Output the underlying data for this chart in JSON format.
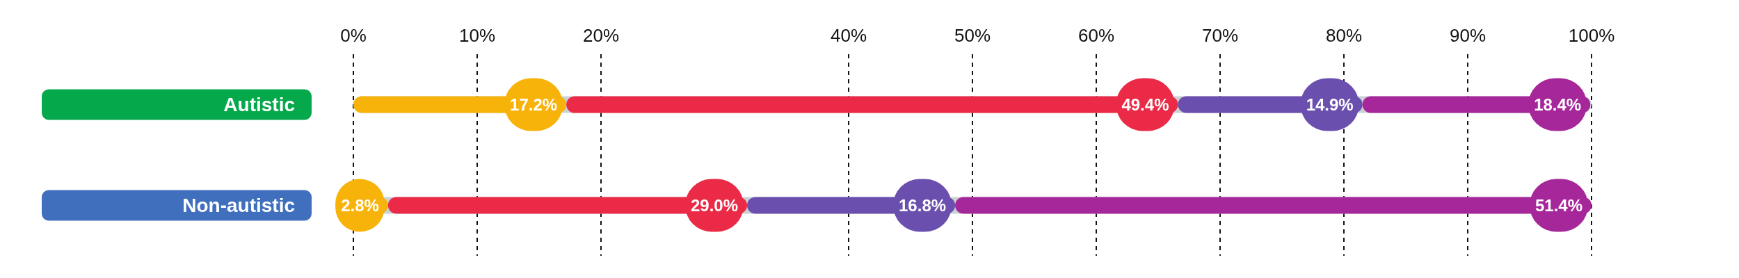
{
  "chart_data": {
    "type": "bar",
    "orientation": "horizontal",
    "stacked": true,
    "categories": [
      "Autistic",
      "Non-autistic"
    ],
    "series": [
      {
        "color": "#f7b30a",
        "values": [
          17.2,
          2.8
        ],
        "value_labels": [
          "17.2%",
          "2.8%"
        ]
      },
      {
        "color": "#ea2a46",
        "values": [
          49.4,
          29.0
        ],
        "value_labels": [
          "49.4%",
          "29.0%"
        ]
      },
      {
        "color": "#6a4fae",
        "values": [
          14.9,
          16.8
        ],
        "value_labels": [
          "14.9%",
          "16.8%"
        ]
      },
      {
        "color": "#a6279a",
        "values": [
          18.4,
          51.4
        ],
        "value_labels": [
          "18.4%",
          "51.4%"
        ]
      }
    ],
    "xlim": [
      0,
      100
    ],
    "xticks": [
      {
        "value": 0,
        "label": "0%"
      },
      {
        "value": 10,
        "label": "10%"
      },
      {
        "value": 20,
        "label": "20%"
      },
      {
        "value": 40,
        "label": "40%"
      },
      {
        "value": 50,
        "label": "50%"
      },
      {
        "value": 60,
        "label": "60%"
      },
      {
        "value": 70,
        "label": "70%"
      },
      {
        "value": 80,
        "label": "80%"
      },
      {
        "value": 90,
        "label": "90%"
      },
      {
        "value": 100,
        "label": "100%"
      }
    ],
    "grid": "x"
  }
}
